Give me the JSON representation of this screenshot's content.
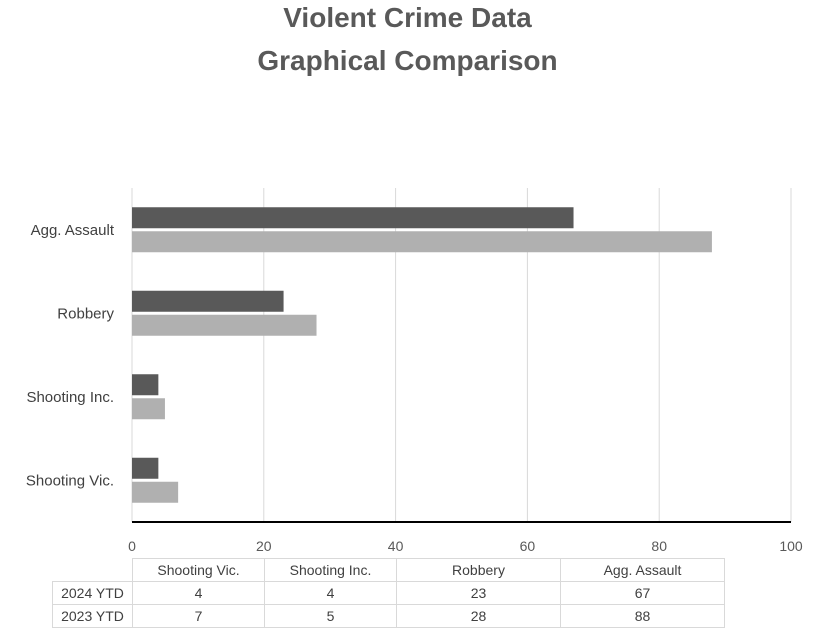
{
  "title": {
    "line1": "Violent Crime Data",
    "line2": "Graphical Comparison"
  },
  "chart_data": {
    "type": "bar",
    "orientation": "horizontal",
    "categories": [
      "Shooting Vic.",
      "Shooting Inc.",
      "Robbery",
      "Agg. Assault"
    ],
    "series": [
      {
        "name": "2024 YTD",
        "values": [
          4,
          4,
          23,
          67
        ],
        "color": "#595959"
      },
      {
        "name": "2023 YTD",
        "values": [
          7,
          5,
          28,
          88
        ],
        "color": "#b0b0b0"
      }
    ],
    "xlim": [
      0,
      100
    ],
    "x_ticks": [
      "0",
      "20",
      "40",
      "60",
      "80",
      "100"
    ],
    "grid": true,
    "legend": "data table below chart"
  },
  "table": {
    "headers": [
      "Shooting Vic.",
      "Shooting Inc.",
      "Robbery",
      "Agg. Assault"
    ],
    "rows": [
      {
        "label": "2024 YTD",
        "values": [
          "4",
          "4",
          "23",
          "67"
        ]
      },
      {
        "label": "2023 YTD",
        "values": [
          "7",
          "5",
          "28",
          "88"
        ]
      }
    ]
  }
}
